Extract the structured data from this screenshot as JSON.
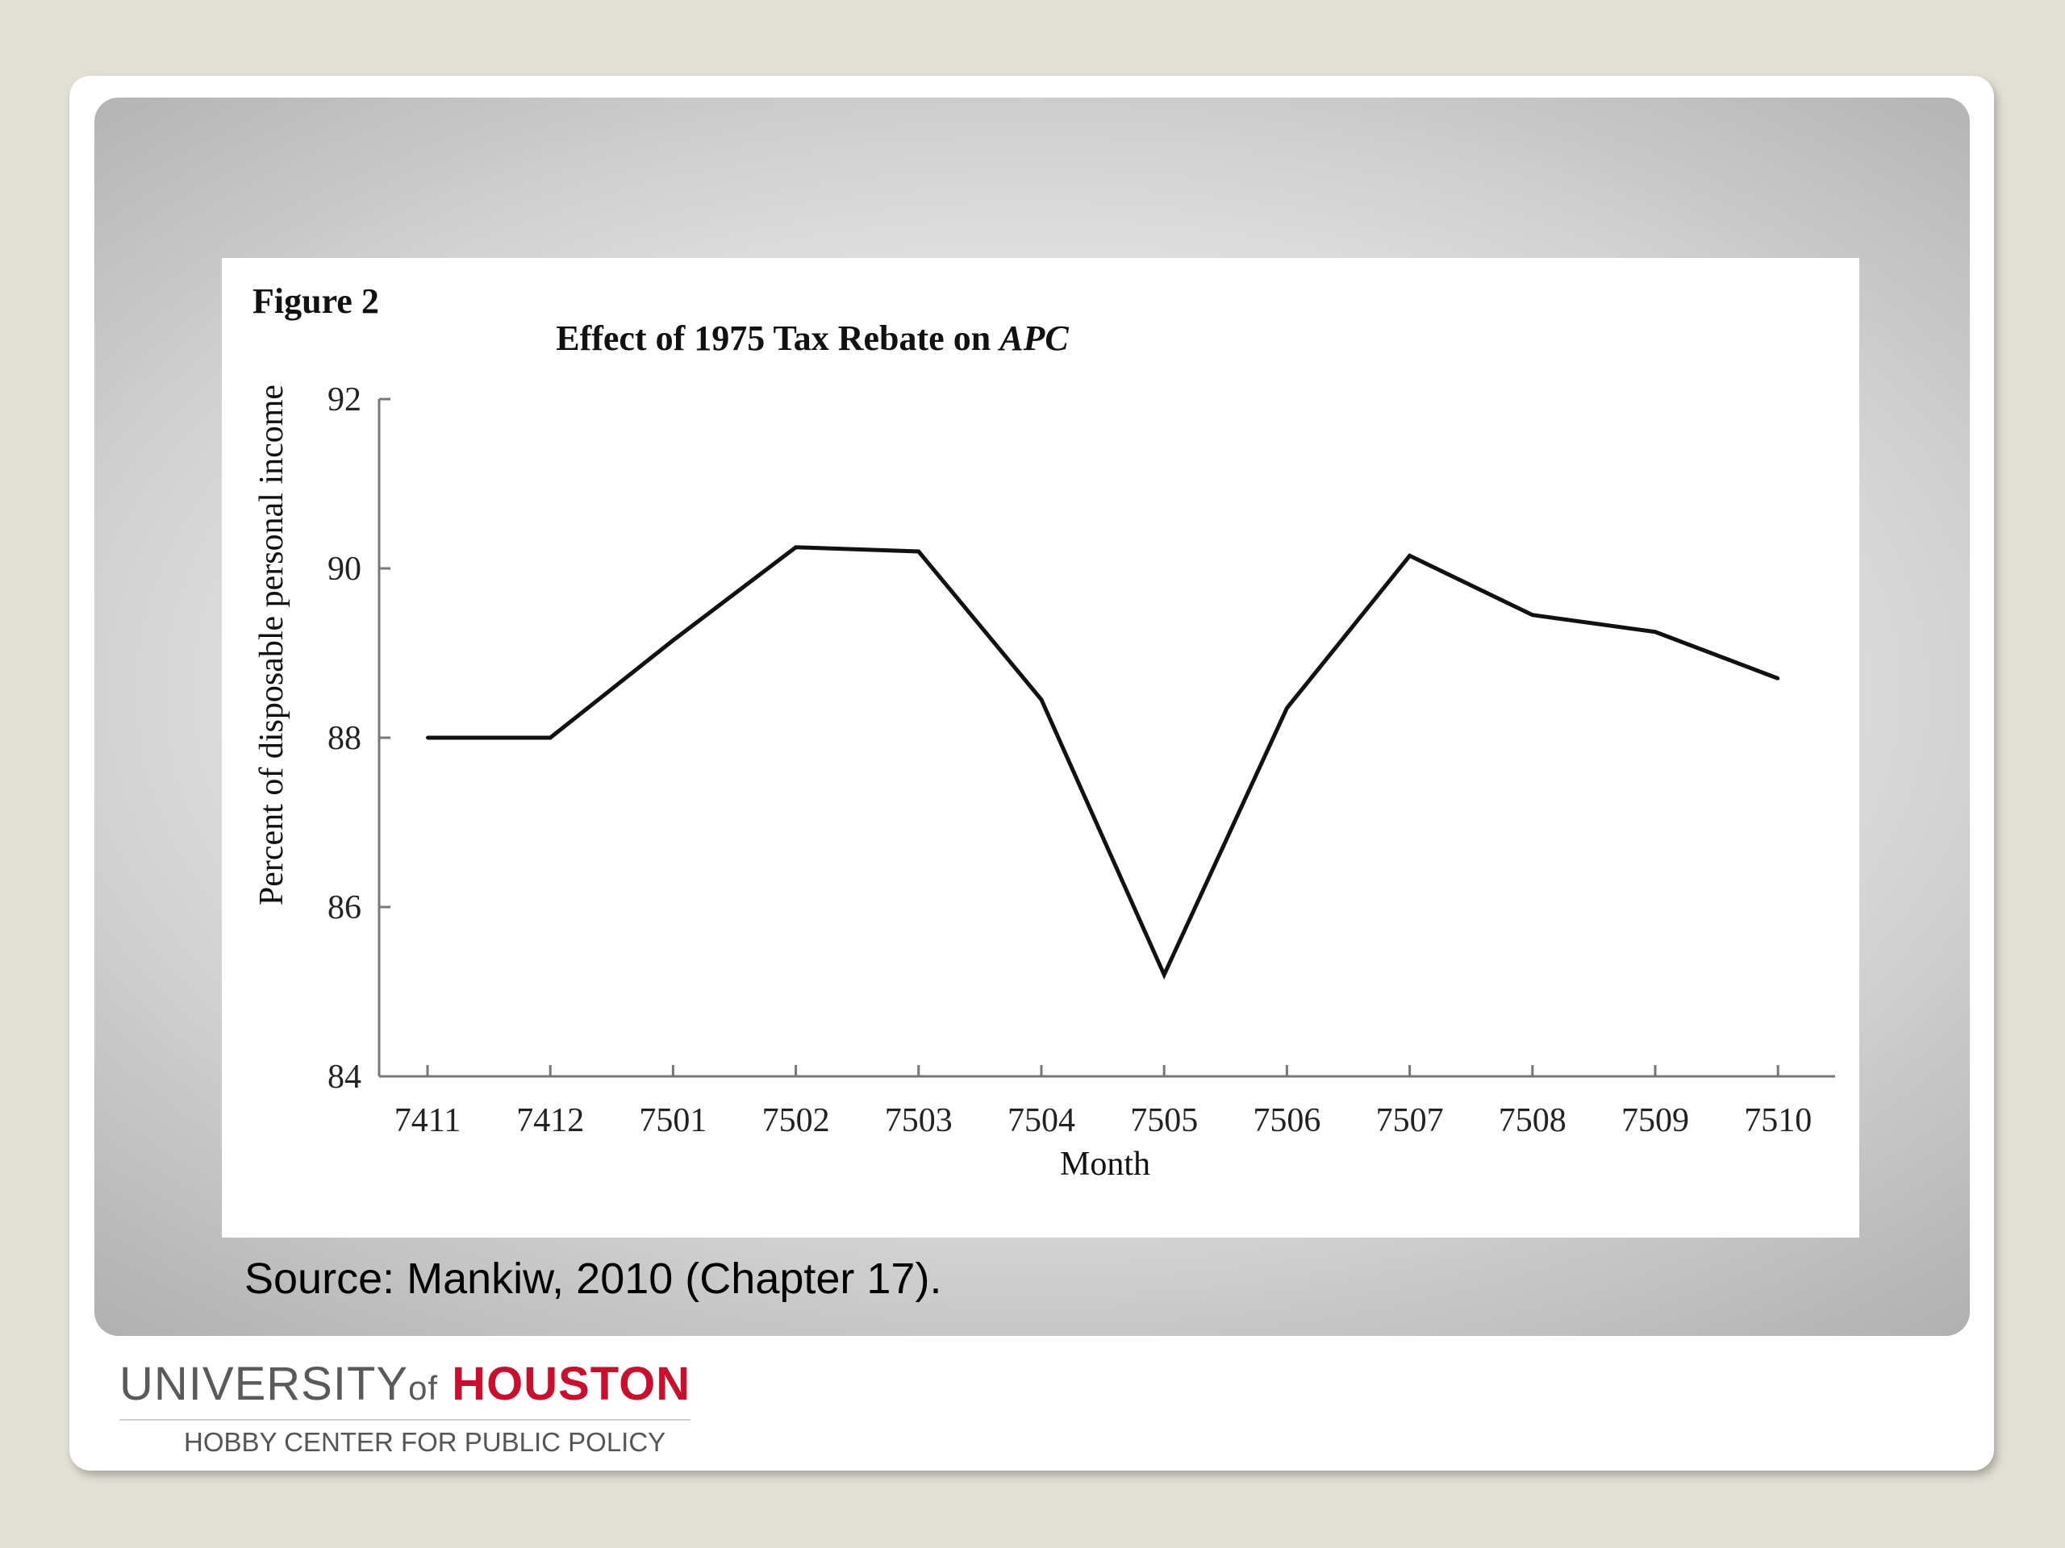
{
  "slide": {
    "source_text": "Source: Mankiw, 2010 (Chapter 17).",
    "logo": {
      "university": "UNIVERSITY",
      "of": "of",
      "houston": "HOUSTON",
      "subtitle": "HOBBY CENTER FOR PUBLIC POLICY"
    }
  },
  "figure": {
    "label": "Figure 2",
    "title_main": "Effect of 1975 Tax Rebate on ",
    "title_italic": "APC"
  },
  "chart_data": {
    "type": "line",
    "title": "Effect of 1975 Tax Rebate on APC",
    "xlabel": "Month",
    "ylabel": "Percent of disposable personal income",
    "ylim": [
      84,
      92
    ],
    "yticks": [
      84,
      86,
      88,
      90,
      92
    ],
    "categories": [
      "7411",
      "7412",
      "7501",
      "7502",
      "7503",
      "7504",
      "7505",
      "7506",
      "7507",
      "7508",
      "7509",
      "7510"
    ],
    "values": [
      88.0,
      88.0,
      89.15,
      90.25,
      90.2,
      88.45,
      85.2,
      88.35,
      90.15,
      89.45,
      89.25,
      88.7
    ],
    "grid": false,
    "line_color": "#111111"
  }
}
